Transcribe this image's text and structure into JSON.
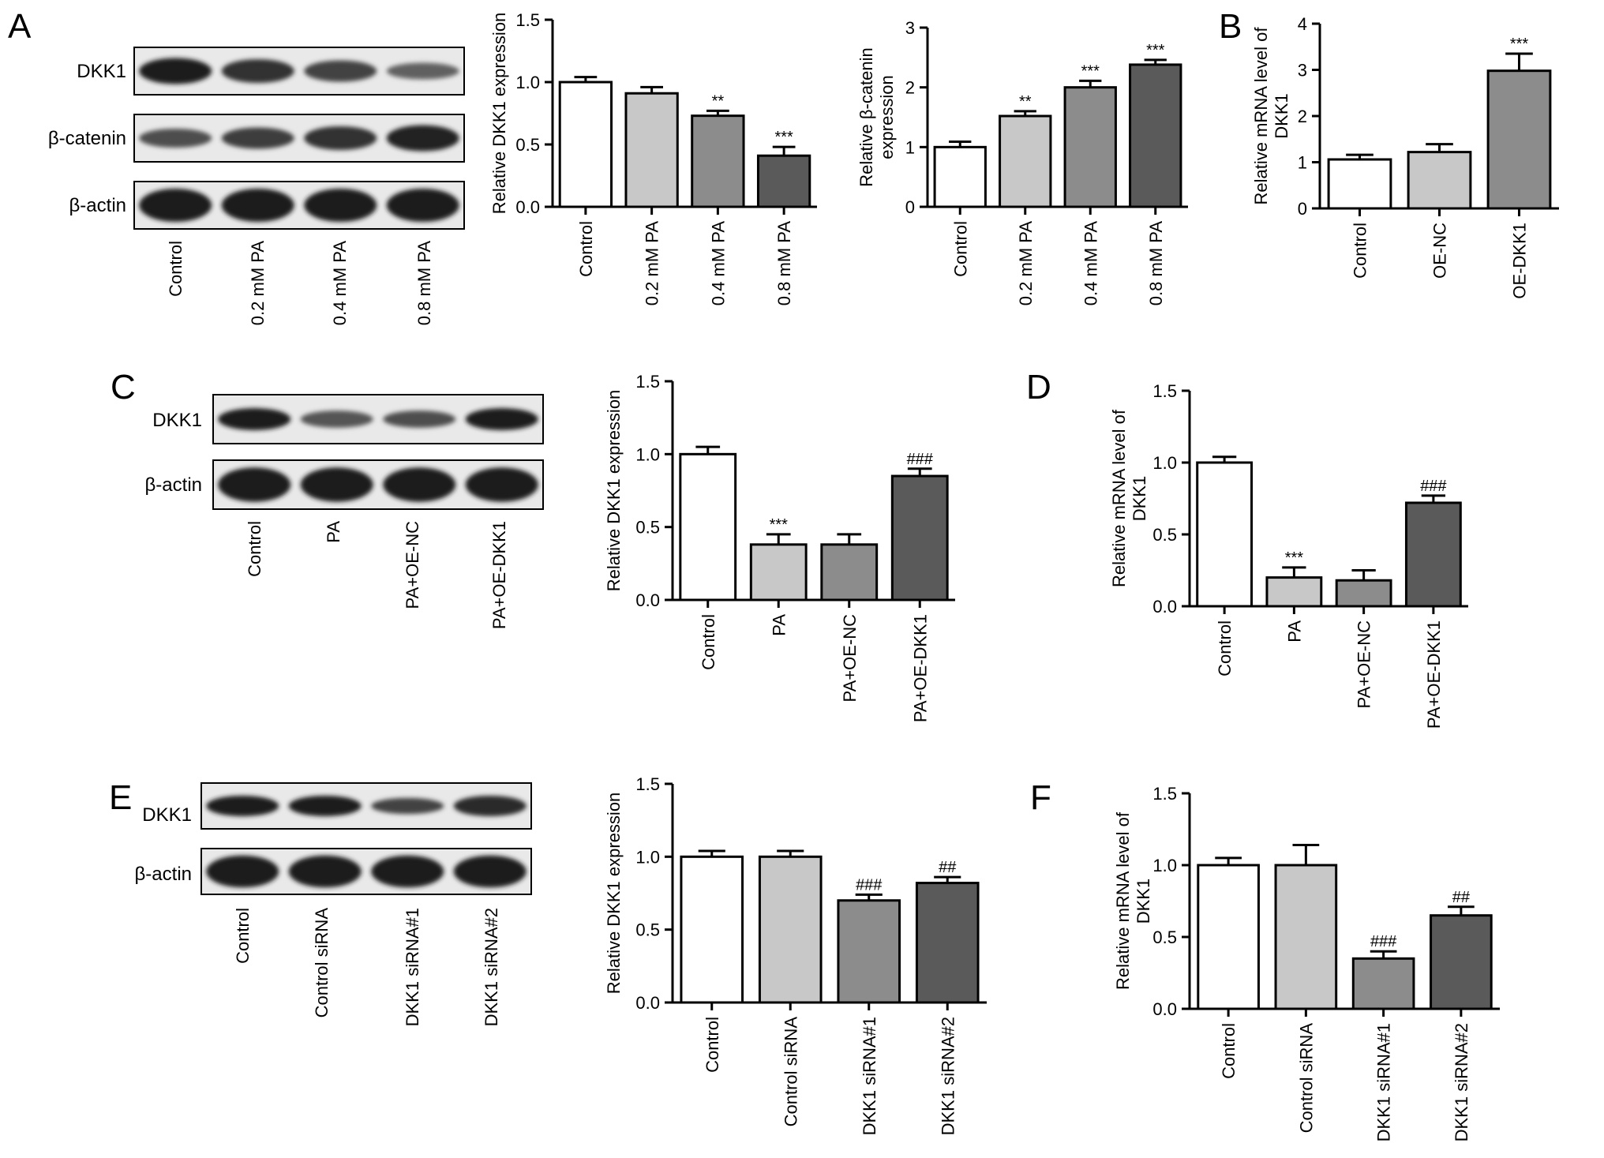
{
  "panel_letters": [
    "A",
    "B",
    "C",
    "D",
    "E",
    "F"
  ],
  "blots": [
    {
      "id": "blot-a",
      "bands": [
        {
          "label": "DKK1",
          "intensity": [
            1.0,
            0.85,
            0.7,
            0.45
          ],
          "thickness": [
            0.55,
            0.5,
            0.45,
            0.35
          ]
        },
        {
          "label": "β-catenin",
          "intensity": [
            0.6,
            0.75,
            0.85,
            0.95
          ],
          "thickness": [
            0.4,
            0.45,
            0.5,
            0.55
          ]
        },
        {
          "label": "β-actin",
          "intensity": [
            1.0,
            1.0,
            1.0,
            1.0
          ],
          "thickness": [
            0.7,
            0.7,
            0.7,
            0.7
          ]
        }
      ],
      "lanes": [
        "Control",
        "0.2 mM PA",
        "0.4 mM PA",
        "0.8 mM PA"
      ]
    },
    {
      "id": "blot-c",
      "bands": [
        {
          "label": "DKK1",
          "intensity": [
            1.0,
            0.55,
            0.6,
            1.0
          ],
          "thickness": [
            0.45,
            0.35,
            0.35,
            0.45
          ]
        },
        {
          "label": "β-actin",
          "intensity": [
            1.0,
            1.0,
            1.0,
            1.0
          ],
          "thickness": [
            0.7,
            0.7,
            0.7,
            0.7
          ]
        }
      ],
      "lanes": [
        "Control",
        "PA",
        "PA+OE-NC",
        "PA+OE-DKK1"
      ]
    },
    {
      "id": "blot-e",
      "bands": [
        {
          "label": "DKK1",
          "intensity": [
            1.0,
            1.0,
            0.7,
            0.9
          ],
          "thickness": [
            0.45,
            0.45,
            0.35,
            0.45
          ]
        },
        {
          "label": "β-actin",
          "intensity": [
            1.0,
            1.0,
            1.0,
            1.0
          ],
          "thickness": [
            0.7,
            0.7,
            0.7,
            0.7
          ]
        }
      ],
      "lanes": [
        "Control",
        "Control siRNA",
        "DKK1 siRNA#1",
        "DKK1 siRNA#2"
      ]
    }
  ],
  "chart_data": [
    {
      "type": "bar",
      "id": "chart-a1",
      "ylabel": "Relative DKK1 expression",
      "ylim": [
        0,
        1.5
      ],
      "yticks": [
        "0.0",
        "0.5",
        "1.0",
        "1.5"
      ],
      "categories": [
        "Control",
        "0.2 mM PA",
        "0.4 mM PA",
        "0.8 mM PA"
      ],
      "values": [
        1.0,
        0.91,
        0.73,
        0.41
      ],
      "errors": [
        0.04,
        0.05,
        0.04,
        0.07
      ],
      "significance": [
        "",
        "",
        "**",
        "***"
      ],
      "colors": [
        "#ffffff",
        "#c8c8c8",
        "#8c8c8c",
        "#5a5a5a"
      ]
    },
    {
      "type": "bar",
      "id": "chart-a2",
      "ylabel": "Relative β-catenin expression",
      "ylabel_lines": [
        "Relative β-catenin",
        "expression"
      ],
      "ylim": [
        0,
        3
      ],
      "yticks": [
        "0",
        "1",
        "2",
        "3"
      ],
      "categories": [
        "Control",
        "0.2 mM PA",
        "0.4 mM PA",
        "0.8 mM PA"
      ],
      "values": [
        1.0,
        1.52,
        2.0,
        2.38
      ],
      "errors": [
        0.09,
        0.08,
        0.11,
        0.08
      ],
      "significance": [
        "",
        "**",
        "***",
        "***"
      ],
      "colors": [
        "#ffffff",
        "#c8c8c8",
        "#8c8c8c",
        "#5a5a5a"
      ]
    },
    {
      "type": "bar",
      "id": "chart-b",
      "ylabel": "Relative mRNA level of DKK1",
      "ylabel_lines": [
        "Relative mRNA level of",
        "DKK1"
      ],
      "ylim": [
        0,
        4
      ],
      "yticks": [
        "0",
        "1",
        "2",
        "3",
        "4"
      ],
      "categories": [
        "Control",
        "OE-NC",
        "OE-DKK1"
      ],
      "values": [
        1.06,
        1.22,
        2.98
      ],
      "errors": [
        0.1,
        0.17,
        0.37
      ],
      "significance": [
        "",
        "",
        "***"
      ],
      "colors": [
        "#ffffff",
        "#c8c8c8",
        "#8c8c8c"
      ]
    },
    {
      "type": "bar",
      "id": "chart-c",
      "ylabel": "Relative DKK1 expression",
      "ylim": [
        0,
        1.5
      ],
      "yticks": [
        "0.0",
        "0.5",
        "1.0",
        "1.5"
      ],
      "categories": [
        "Control",
        "PA",
        "PA+OE-NC",
        "PA+OE-DKK1"
      ],
      "values": [
        1.0,
        0.38,
        0.38,
        0.85
      ],
      "errors": [
        0.05,
        0.07,
        0.07,
        0.05
      ],
      "significance": [
        "",
        "***",
        "",
        "###"
      ],
      "colors": [
        "#ffffff",
        "#c8c8c8",
        "#8c8c8c",
        "#5a5a5a"
      ]
    },
    {
      "type": "bar",
      "id": "chart-d",
      "ylabel": "Relative mRNA level of DKK1",
      "ylabel_lines": [
        "Relative mRNA level of",
        "DKK1"
      ],
      "ylim": [
        0,
        1.5
      ],
      "yticks": [
        "0.0",
        "0.5",
        "1.0",
        "1.5"
      ],
      "categories": [
        "Control",
        "PA",
        "PA+OE-NC",
        "PA+OE-DKK1"
      ],
      "values": [
        1.0,
        0.2,
        0.18,
        0.72
      ],
      "errors": [
        0.04,
        0.07,
        0.07,
        0.05
      ],
      "significance": [
        "",
        "***",
        "",
        "###"
      ],
      "colors": [
        "#ffffff",
        "#c8c8c8",
        "#8c8c8c",
        "#5a5a5a"
      ]
    },
    {
      "type": "bar",
      "id": "chart-e",
      "ylabel": "Relative DKK1 expression",
      "ylim": [
        0,
        1.5
      ],
      "yticks": [
        "0.0",
        "0.5",
        "1.0",
        "1.5"
      ],
      "categories": [
        "Control",
        "Control siRNA",
        "DKK1 siRNA#1",
        "DKK1 siRNA#2"
      ],
      "values": [
        1.0,
        1.0,
        0.7,
        0.82
      ],
      "errors": [
        0.04,
        0.04,
        0.04,
        0.04
      ],
      "significance": [
        "",
        "",
        "###",
        "##"
      ],
      "colors": [
        "#ffffff",
        "#c8c8c8",
        "#8c8c8c",
        "#5a5a5a"
      ]
    },
    {
      "type": "bar",
      "id": "chart-f",
      "ylabel": "Relative mRNA level of DKK1",
      "ylabel_lines": [
        "Relative mRNA level of",
        "DKK1"
      ],
      "ylim": [
        0,
        1.5
      ],
      "yticks": [
        "0.0",
        "0.5",
        "1.0",
        "1.5"
      ],
      "categories": [
        "Control",
        "Control siRNA",
        "DKK1 siRNA#1",
        "DKK1 siRNA#2"
      ],
      "values": [
        1.0,
        1.0,
        0.35,
        0.65
      ],
      "errors": [
        0.05,
        0.14,
        0.05,
        0.06
      ],
      "significance": [
        "",
        "",
        "###",
        "##"
      ],
      "colors": [
        "#ffffff",
        "#c8c8c8",
        "#8c8c8c",
        "#5a5a5a"
      ]
    }
  ]
}
